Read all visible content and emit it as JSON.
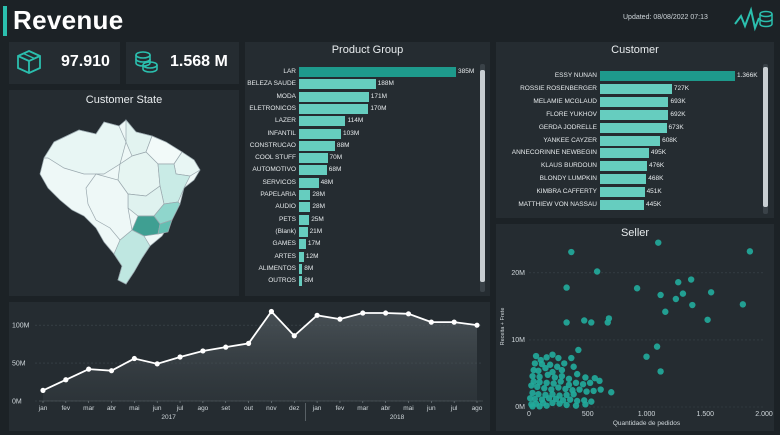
{
  "header": {
    "title": "Revenue",
    "updated": "Updated: 08/08/2022 07:13",
    "accent_color": "#2bbfae"
  },
  "kpis": [
    {
      "icon": "box-icon",
      "value": "97.910"
    },
    {
      "icon": "coins-icon",
      "value": "1.568 M"
    }
  ],
  "customer_state": {
    "title": "Customer State"
  },
  "product_group": {
    "title": "Product Group",
    "chart_data": {
      "type": "bar",
      "orientation": "horizontal",
      "categories": [
        "LAR",
        "BELEZA SAUDE",
        "MODA",
        "ELETRONICOS",
        "LAZER",
        "INFANTIL",
        "CONSTRUCAO",
        "COOL STUFF",
        "AUTOMOTIVO",
        "SERVICOS",
        "PAPELARIA",
        "AUDIO",
        "PETS",
        "(Blank)",
        "GAMES",
        "ARTES",
        "ALIMENTOS",
        "OUTROS"
      ],
      "values": [
        385,
        188,
        171,
        170,
        114,
        103,
        88,
        70,
        68,
        48,
        28,
        28,
        25,
        21,
        17,
        12,
        8,
        8
      ],
      "labels": [
        "385M",
        "188M",
        "171M",
        "170M",
        "114M",
        "103M",
        "88M",
        "70M",
        "68M",
        "48M",
        "28M",
        "28M",
        "25M",
        "21M",
        "17M",
        "12M",
        "8M",
        "8M"
      ]
    }
  },
  "customer": {
    "title": "Customer",
    "chart_data": {
      "type": "bar",
      "orientation": "horizontal",
      "categories": [
        "ESSY NUNAN",
        "ROSSIE ROSENBERGER",
        "MELAMIE MCGLAUD",
        "FLORE YUKHOV",
        "GERDA JODRELLE",
        "YANKEE CAYZER",
        "ANNECORINNE NEWBEGIN",
        "KLAUS BURDOUN",
        "BLONDY LUMPKIN",
        "KIMBRA CAFFERTY",
        "MATTHIEW VON NASSAU"
      ],
      "values": [
        1366,
        727,
        693,
        692,
        673,
        608,
        495,
        476,
        468,
        451,
        445
      ],
      "labels": [
        "1.366K",
        "727K",
        "693K",
        "692K",
        "673K",
        "608K",
        "495K",
        "476K",
        "468K",
        "451K",
        "445K"
      ]
    }
  },
  "seller": {
    "title": "Seller",
    "chart_data": {
      "type": "scatter",
      "xlabel": "Quantidade de pedidos",
      "ylabel": "Receita + Frete",
      "xlim": [
        0,
        2000
      ],
      "ylim": [
        0,
        24
      ],
      "x_ticks": [
        "0",
        "500",
        "1.000",
        "1.500",
        "2.000"
      ],
      "y_ticks": [
        "0M",
        "10M",
        "20M"
      ],
      "points": [
        [
          1100,
          24.5
        ],
        [
          1880,
          23.2
        ],
        [
          360,
          23.1
        ],
        [
          580,
          20.2
        ],
        [
          320,
          17.8
        ],
        [
          920,
          17.7
        ],
        [
          1270,
          18.6
        ],
        [
          1380,
          19.0
        ],
        [
          1120,
          16.7
        ],
        [
          1250,
          16.1
        ],
        [
          1310,
          16.9
        ],
        [
          1390,
          15.2
        ],
        [
          1550,
          17.1
        ],
        [
          1820,
          15.3
        ],
        [
          320,
          12.6
        ],
        [
          470,
          12.9
        ],
        [
          530,
          12.6
        ],
        [
          670,
          12.6
        ],
        [
          680,
          13.2
        ],
        [
          1160,
          14.2
        ],
        [
          1520,
          13.0
        ],
        [
          1090,
          9.0
        ],
        [
          1000,
          7.5
        ],
        [
          1120,
          5.3
        ],
        [
          420,
          8.5
        ],
        [
          360,
          7.3
        ],
        [
          250,
          7.3
        ],
        [
          200,
          7.8
        ],
        [
          150,
          7.4
        ],
        [
          100,
          7.0
        ],
        [
          60,
          7.6
        ],
        [
          50,
          6.5
        ],
        [
          110,
          6.4
        ],
        [
          180,
          6.3
        ],
        [
          240,
          6.0
        ],
        [
          300,
          6.5
        ],
        [
          380,
          6.0
        ],
        [
          280,
          5.5
        ],
        [
          200,
          5.2
        ],
        [
          140,
          5.8
        ],
        [
          80,
          5.4
        ],
        [
          40,
          5.5
        ],
        [
          30,
          4.6
        ],
        [
          90,
          4.5
        ],
        [
          160,
          4.8
        ],
        [
          220,
          4.4
        ],
        [
          280,
          4.6
        ],
        [
          340,
          4.2
        ],
        [
          410,
          4.9
        ],
        [
          480,
          4.4
        ],
        [
          560,
          4.3
        ],
        [
          600,
          3.9
        ],
        [
          520,
          3.6
        ],
        [
          460,
          3.4
        ],
        [
          400,
          3.6
        ],
        [
          340,
          3.3
        ],
        [
          270,
          3.8
        ],
        [
          210,
          3.5
        ],
        [
          150,
          3.6
        ],
        [
          90,
          3.7
        ],
        [
          40,
          3.8
        ],
        [
          20,
          3.2
        ],
        [
          70,
          3.0
        ],
        [
          130,
          2.8
        ],
        [
          190,
          2.6
        ],
        [
          250,
          2.9
        ],
        [
          310,
          2.7
        ],
        [
          370,
          2.5
        ],
        [
          430,
          2.6
        ],
        [
          490,
          2.3
        ],
        [
          550,
          2.4
        ],
        [
          610,
          2.6
        ],
        [
          700,
          2.2
        ],
        [
          380,
          1.9
        ],
        [
          320,
          1.8
        ],
        [
          260,
          1.7
        ],
        [
          200,
          1.9
        ],
        [
          140,
          1.8
        ],
        [
          80,
          1.9
        ],
        [
          30,
          2.1
        ],
        [
          10,
          1.3
        ],
        [
          50,
          1.2
        ],
        [
          110,
          1.1
        ],
        [
          170,
          1.3
        ],
        [
          230,
          1.2
        ],
        [
          290,
          1.0
        ],
        [
          350,
          1.1
        ],
        [
          410,
          0.9
        ],
        [
          470,
          1.0
        ],
        [
          530,
          0.8
        ],
        [
          200,
          0.6
        ],
        [
          120,
          0.6
        ],
        [
          60,
          0.5
        ],
        [
          20,
          0.4
        ],
        [
          260,
          0.5
        ],
        [
          320,
          0.3
        ],
        [
          150,
          0.2
        ],
        [
          90,
          0.1
        ],
        [
          30,
          0.1
        ],
        [
          400,
          0.2
        ],
        [
          480,
          0.4
        ]
      ]
    }
  },
  "timeline": {
    "chart_data": {
      "type": "area",
      "y_ticks": [
        "0M",
        "50M",
        "100M"
      ],
      "ylim": [
        0,
        120
      ],
      "categories": [
        "jan",
        "fev",
        "mar",
        "abr",
        "mai",
        "jun",
        "jul",
        "ago",
        "set",
        "out",
        "nov",
        "dez",
        "jan",
        "fev",
        "mar",
        "abr",
        "mai",
        "jun",
        "jul",
        "ago"
      ],
      "values": [
        14,
        28,
        42,
        40,
        56,
        49,
        58,
        66,
        71,
        76,
        118,
        86,
        113,
        108,
        116,
        116,
        115,
        104,
        104,
        100
      ],
      "year_labels": [
        "2017",
        "2018"
      ]
    }
  }
}
